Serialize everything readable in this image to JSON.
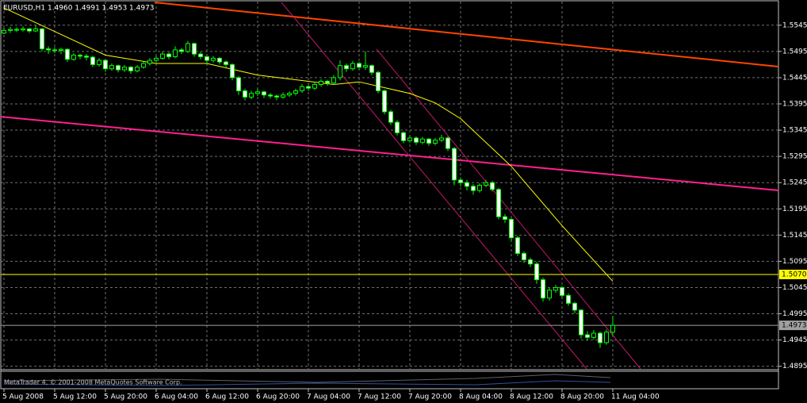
{
  "chart_data": {
    "type": "candlestick",
    "title": "EURUSD,H1  1.4960 1.4991 1.4953 1.4973",
    "categories": [
      "5 Aug 2008",
      null,
      null,
      null,
      null,
      null,
      null,
      null,
      "5 Aug 12:00",
      null,
      null,
      null,
      null,
      null,
      null,
      null,
      "5 Aug 20:00",
      null,
      null,
      null,
      null,
      null,
      null,
      null,
      "6 Aug 04:00",
      null,
      null,
      null,
      null,
      null,
      null,
      null,
      "6 Aug 12:00",
      null,
      null,
      null,
      null,
      null,
      null,
      null,
      "6 Aug 20:00",
      null,
      null,
      null,
      null,
      null,
      null,
      null,
      "7 Aug 04:00",
      null,
      null,
      null,
      null,
      null,
      null,
      null,
      "7 Aug 12:00",
      null,
      null,
      null,
      null,
      null,
      null,
      null,
      "7 Aug 20:00",
      null,
      null,
      null,
      null,
      null,
      null,
      null,
      "8 Aug 04:00",
      null,
      null,
      null,
      null,
      null,
      null,
      null,
      "8 Aug 12:00",
      null,
      null,
      null,
      null,
      null,
      null,
      null,
      "8 Aug 20:00",
      null,
      null,
      null,
      null,
      null,
      null,
      null,
      "11 Aug 04:00"
    ],
    "ohlc": [
      [
        1.553,
        1.554,
        1.5528,
        1.5535
      ],
      [
        1.5535,
        1.5542,
        1.553,
        1.5537
      ],
      [
        1.5537,
        1.5541,
        1.5532,
        1.5536
      ],
      [
        1.5536,
        1.5543,
        1.5533,
        1.5538
      ],
      [
        1.5538,
        1.554,
        1.553,
        1.5534
      ],
      [
        1.5534,
        1.5545,
        1.5532,
        1.5538
      ],
      [
        1.5538,
        1.554,
        1.5495,
        1.55
      ],
      [
        1.55,
        1.5505,
        1.549,
        1.5498
      ],
      [
        1.5498,
        1.5503,
        1.5492,
        1.5497
      ],
      [
        1.5497,
        1.5502,
        1.549,
        1.5499
      ],
      [
        1.5499,
        1.5501,
        1.5475,
        1.548
      ],
      [
        1.548,
        1.5492,
        1.5477,
        1.5488
      ],
      [
        1.5488,
        1.5491,
        1.548,
        1.5486
      ],
      [
        1.5486,
        1.549,
        1.5478,
        1.5484
      ],
      [
        1.5484,
        1.5487,
        1.5465,
        1.547
      ],
      [
        1.547,
        1.5482,
        1.5466,
        1.5478
      ],
      [
        1.5478,
        1.548,
        1.5456,
        1.5462
      ],
      [
        1.5462,
        1.5472,
        1.5458,
        1.5468
      ],
      [
        1.5468,
        1.547,
        1.5455,
        1.546
      ],
      [
        1.546,
        1.5469,
        1.5456,
        1.5465
      ],
      [
        1.5465,
        1.5467,
        1.5452,
        1.5458
      ],
      [
        1.5458,
        1.5469,
        1.5455,
        1.5465
      ],
      [
        1.5465,
        1.5476,
        1.5462,
        1.5472
      ],
      [
        1.5472,
        1.5482,
        1.5468,
        1.5478
      ],
      [
        1.5478,
        1.5486,
        1.5474,
        1.5482
      ],
      [
        1.5482,
        1.5495,
        1.5479,
        1.549
      ],
      [
        1.549,
        1.5493,
        1.548,
        1.5485
      ],
      [
        1.5485,
        1.5505,
        1.5482,
        1.5498
      ],
      [
        1.5498,
        1.5502,
        1.549,
        1.5495
      ],
      [
        1.5495,
        1.5515,
        1.5492,
        1.551
      ],
      [
        1.551,
        1.5512,
        1.5485,
        1.549
      ],
      [
        1.549,
        1.5494,
        1.548,
        1.5485
      ],
      [
        1.5485,
        1.5488,
        1.5472,
        1.5478
      ],
      [
        1.5478,
        1.5486,
        1.5474,
        1.5482
      ],
      [
        1.5482,
        1.5484,
        1.547,
        1.5475
      ],
      [
        1.5475,
        1.5478,
        1.5465,
        1.547
      ],
      [
        1.547,
        1.5472,
        1.544,
        1.5445
      ],
      [
        1.5445,
        1.5448,
        1.5412,
        1.542
      ],
      [
        1.542,
        1.5424,
        1.5402,
        1.5408
      ],
      [
        1.5408,
        1.542,
        1.5404,
        1.5415
      ],
      [
        1.5415,
        1.5424,
        1.541,
        1.5418
      ],
      [
        1.5418,
        1.542,
        1.5406,
        1.5412
      ],
      [
        1.5412,
        1.5416,
        1.5405,
        1.541
      ],
      [
        1.541,
        1.5413,
        1.5402,
        1.5408
      ],
      [
        1.5408,
        1.5417,
        1.5405,
        1.5412
      ],
      [
        1.5412,
        1.5419,
        1.5408,
        1.5415
      ],
      [
        1.5415,
        1.5424,
        1.5411,
        1.542
      ],
      [
        1.542,
        1.5433,
        1.5416,
        1.5428
      ],
      [
        1.5428,
        1.5431,
        1.542,
        1.5425
      ],
      [
        1.5425,
        1.5437,
        1.5421,
        1.5432
      ],
      [
        1.5432,
        1.5442,
        1.5428,
        1.5438
      ],
      [
        1.5438,
        1.5441,
        1.543,
        1.5435
      ],
      [
        1.5435,
        1.545,
        1.5431,
        1.5445
      ],
      [
        1.5445,
        1.5478,
        1.544,
        1.5468
      ],
      [
        1.5468,
        1.5472,
        1.5456,
        1.5462
      ],
      [
        1.5462,
        1.5477,
        1.5458,
        1.5472
      ],
      [
        1.5472,
        1.5475,
        1.546,
        1.5465
      ],
      [
        1.5465,
        1.5495,
        1.546,
        1.5468
      ],
      [
        1.5468,
        1.547,
        1.545,
        1.5455
      ],
      [
        1.5455,
        1.5458,
        1.5415,
        1.542
      ],
      [
        1.542,
        1.5423,
        1.5375,
        1.538
      ],
      [
        1.538,
        1.5384,
        1.5355,
        1.536
      ],
      [
        1.536,
        1.5364,
        1.5335,
        1.534
      ],
      [
        1.534,
        1.5343,
        1.532,
        1.5325
      ],
      [
        1.5325,
        1.5335,
        1.5321,
        1.533
      ],
      [
        1.533,
        1.5333,
        1.5317,
        1.5322
      ],
      [
        1.5322,
        1.5332,
        1.5318,
        1.5328
      ],
      [
        1.5328,
        1.533,
        1.5315,
        1.532
      ],
      [
        1.532,
        1.533,
        1.5316,
        1.5326
      ],
      [
        1.5326,
        1.5336,
        1.5322,
        1.533
      ],
      [
        1.533,
        1.5333,
        1.5305,
        1.531
      ],
      [
        1.531,
        1.5313,
        1.524,
        1.525
      ],
      [
        1.525,
        1.5255,
        1.5238,
        1.5245
      ],
      [
        1.5245,
        1.525,
        1.523,
        1.5238
      ],
      [
        1.5238,
        1.5242,
        1.5222,
        1.523
      ],
      [
        1.523,
        1.5244,
        1.5226,
        1.524
      ],
      [
        1.524,
        1.525,
        1.5236,
        1.5245
      ],
      [
        1.5245,
        1.5248,
        1.5228,
        1.5232
      ],
      [
        1.5232,
        1.5235,
        1.5175,
        1.518
      ],
      [
        1.518,
        1.5185,
        1.5168,
        1.5175
      ],
      [
        1.5175,
        1.5178,
        1.5132,
        1.514
      ],
      [
        1.514,
        1.5144,
        1.5105,
        1.511
      ],
      [
        1.511,
        1.5114,
        1.5092,
        1.5098
      ],
      [
        1.5098,
        1.5102,
        1.5084,
        1.509
      ],
      [
        1.509,
        1.5094,
        1.5052,
        1.506
      ],
      [
        1.506,
        1.5064,
        1.5018,
        1.5025
      ],
      [
        1.5025,
        1.5045,
        1.502,
        1.504
      ],
      [
        1.504,
        1.505,
        1.5035,
        1.5045
      ],
      [
        1.5045,
        1.5048,
        1.5025,
        1.503
      ],
      [
        1.503,
        1.5034,
        1.501,
        1.5015
      ],
      [
        1.5015,
        1.5018,
        1.4996,
        1.5002
      ],
      [
        1.5002,
        1.5004,
        1.4948,
        1.4955
      ],
      [
        1.4955,
        1.4962,
        1.4944,
        1.495
      ],
      [
        1.495,
        1.4964,
        1.4946,
        1.4958
      ],
      [
        1.4958,
        1.4961,
        1.493,
        1.494
      ],
      [
        1.494,
        1.4965,
        1.4936,
        1.496
      ],
      [
        1.496,
        1.4991,
        1.4953,
        1.4973
      ]
    ],
    "up_color": "#000000",
    "down_color": "#ffffff",
    "wick_color": "#00ff00",
    "ma": {
      "color": "#ffff00",
      "x": [
        0,
        8,
        16,
        24,
        32,
        40,
        48,
        52,
        56,
        64,
        68,
        72,
        80,
        88,
        96
      ],
      "values": [
        1.5578,
        1.5533,
        1.5488,
        1.5472,
        1.5472,
        1.545,
        1.5438,
        1.5432,
        1.5437,
        1.5415,
        1.5397,
        1.5367,
        1.5276,
        1.5163,
        1.5057
      ]
    },
    "hlines": [
      {
        "value": 1.507,
        "label": "1.5070",
        "color": "#ffff00"
      },
      {
        "value": 1.4973,
        "label": "1.4973",
        "color": "#a0a0a0"
      }
    ],
    "ylim": [
      1.489,
      1.559
    ],
    "yticks": [
      1.4895,
      1.4945,
      1.4995,
      1.5045,
      1.5095,
      1.5145,
      1.5195,
      1.5245,
      1.5295,
      1.5345,
      1.5395,
      1.5445,
      1.5495,
      1.5545
    ],
    "grid": true,
    "copyright": "MetaTrader 4, © 2001-2008 MetaQuotes Software Corp."
  }
}
